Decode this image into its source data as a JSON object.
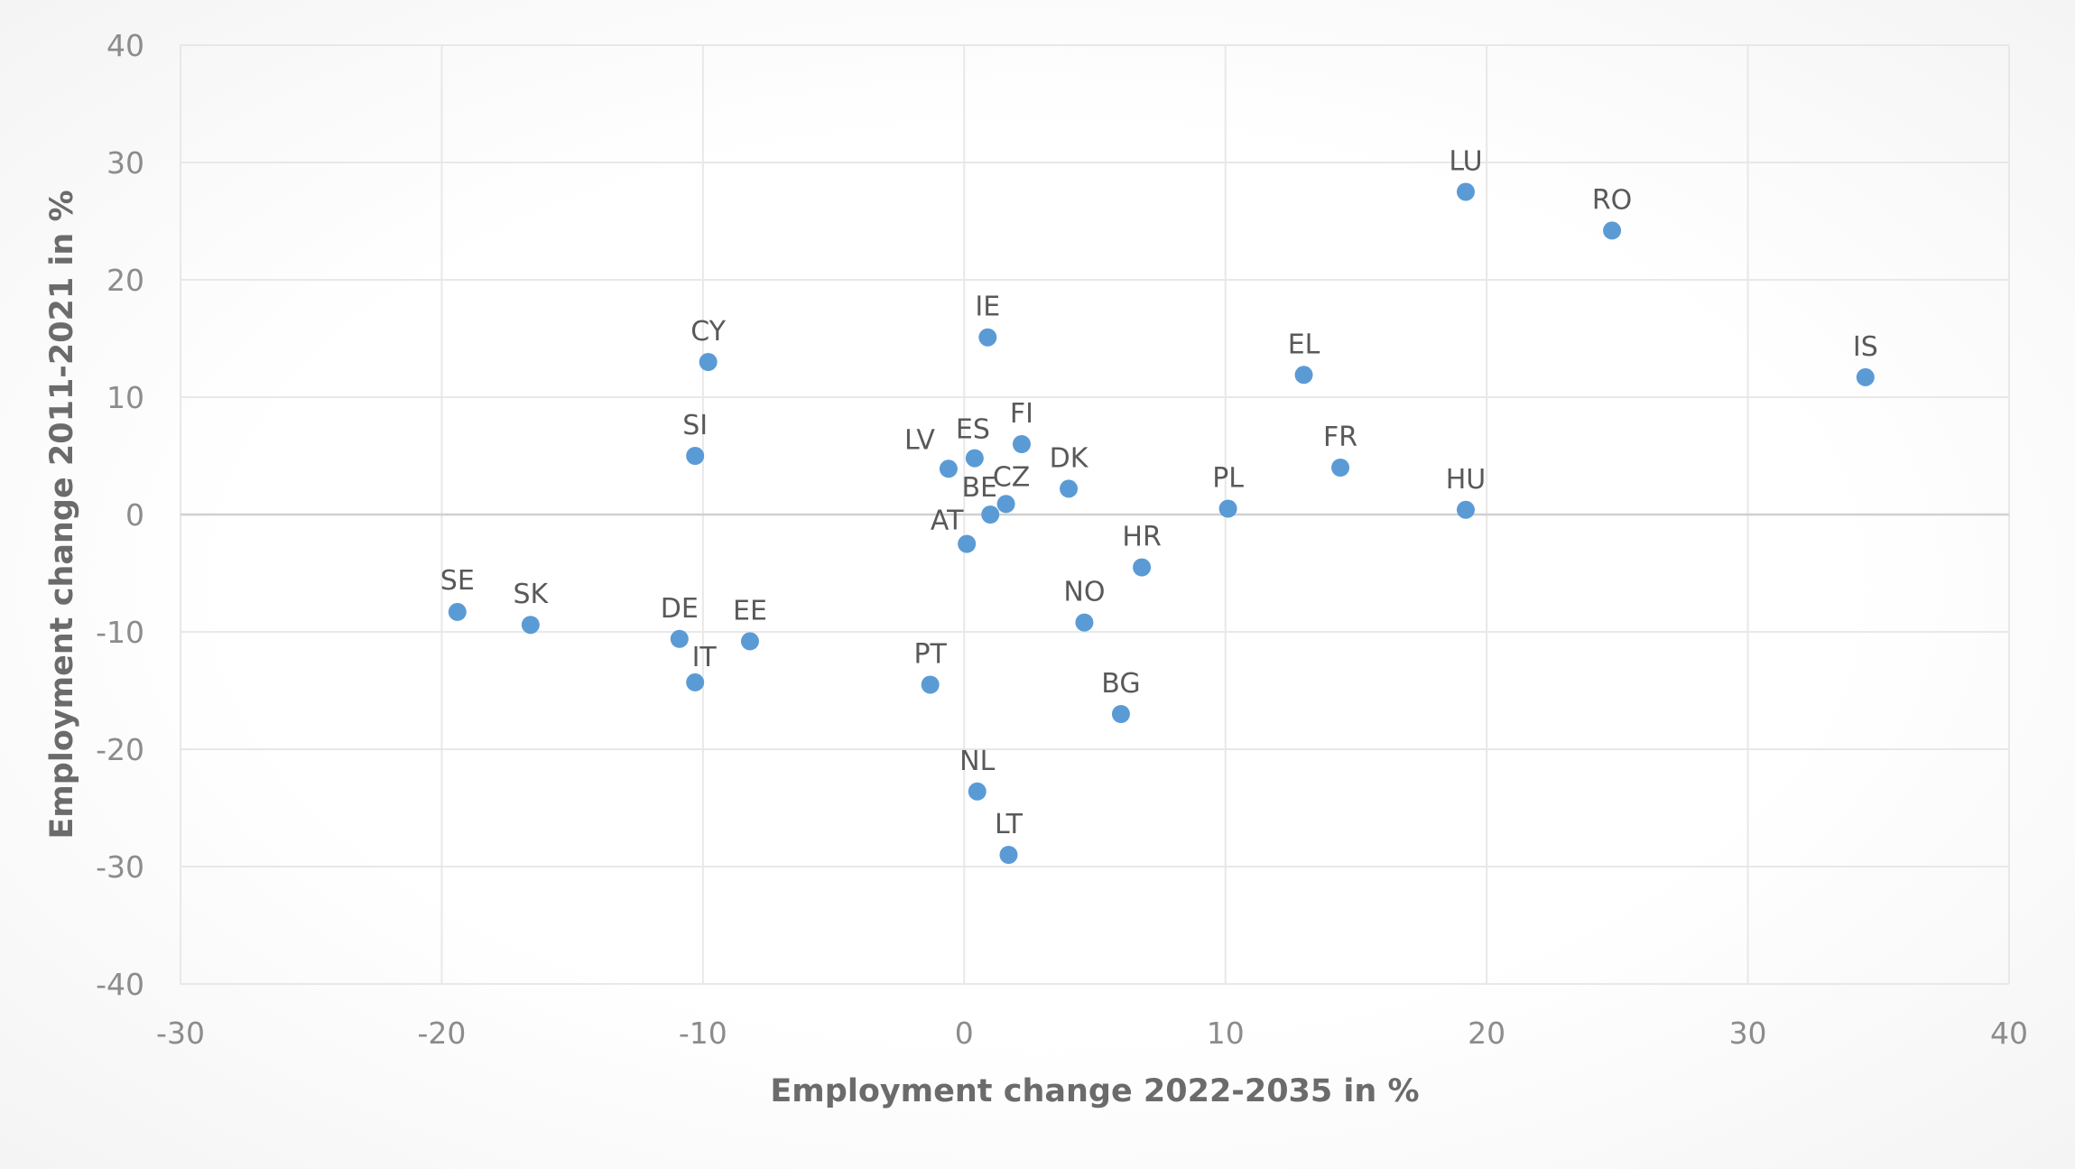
{
  "chart_data": {
    "type": "scatter",
    "title": "",
    "xlabel": "Employment change 2022-2035 in %",
    "ylabel": "Employment change 2011-2021 in %",
    "xlim": [
      -30,
      40
    ],
    "ylim": [
      -40,
      40
    ],
    "x_ticks": [
      -30,
      -20,
      -10,
      0,
      10,
      20,
      30,
      40
    ],
    "y_ticks": [
      -40,
      -30,
      -20,
      -10,
      0,
      10,
      20,
      30,
      40
    ],
    "grid": true,
    "legend": "none",
    "marker_color": "#5b9bd5",
    "grid_color": "#e8e8e8",
    "zero_line_color": "#d0d0d0",
    "points": [
      {
        "label": "LU",
        "x": 19.2,
        "y": 27.5
      },
      {
        "label": "RO",
        "x": 24.8,
        "y": 24.2
      },
      {
        "label": "IS",
        "x": 34.5,
        "y": 11.7
      },
      {
        "label": "IE",
        "x": 0.9,
        "y": 15.1
      },
      {
        "label": "CY",
        "x": -9.8,
        "y": 13.0
      },
      {
        "label": "EL",
        "x": 13.0,
        "y": 11.9
      },
      {
        "label": "SI",
        "x": -10.3,
        "y": 5.0
      },
      {
        "label": "FI",
        "x": 2.2,
        "y": 6.0
      },
      {
        "label": "ES",
        "x": 0.4,
        "y": 4.8
      },
      {
        "label": "LV",
        "x": -0.6,
        "y": 3.9
      },
      {
        "label": "FR",
        "x": 14.4,
        "y": 4.0
      },
      {
        "label": "DK",
        "x": 4.0,
        "y": 2.2
      },
      {
        "label": "CZ",
        "x": 1.6,
        "y": 0.9
      },
      {
        "label": "BE",
        "x": 1.0,
        "y": 0.0
      },
      {
        "label": "PL",
        "x": 10.1,
        "y": 0.5
      },
      {
        "label": "HU",
        "x": 19.2,
        "y": 0.4
      },
      {
        "label": "AT",
        "x": 0.1,
        "y": -2.5
      },
      {
        "label": "HR",
        "x": 6.8,
        "y": -4.5
      },
      {
        "label": "SE",
        "x": -19.4,
        "y": -8.3
      },
      {
        "label": "SK",
        "x": -16.6,
        "y": -9.4
      },
      {
        "label": "NO",
        "x": 4.6,
        "y": -9.2
      },
      {
        "label": "DE",
        "x": -10.9,
        "y": -10.6
      },
      {
        "label": "EE",
        "x": -8.2,
        "y": -10.8
      },
      {
        "label": "IT",
        "x": -10.3,
        "y": -14.3
      },
      {
        "label": "PT",
        "x": -1.3,
        "y": -14.5
      },
      {
        "label": "BG",
        "x": 6.0,
        "y": -17.0
      },
      {
        "label": "NL",
        "x": 0.5,
        "y": -23.6
      },
      {
        "label": "LT",
        "x": 1.7,
        "y": -29.0
      }
    ]
  }
}
